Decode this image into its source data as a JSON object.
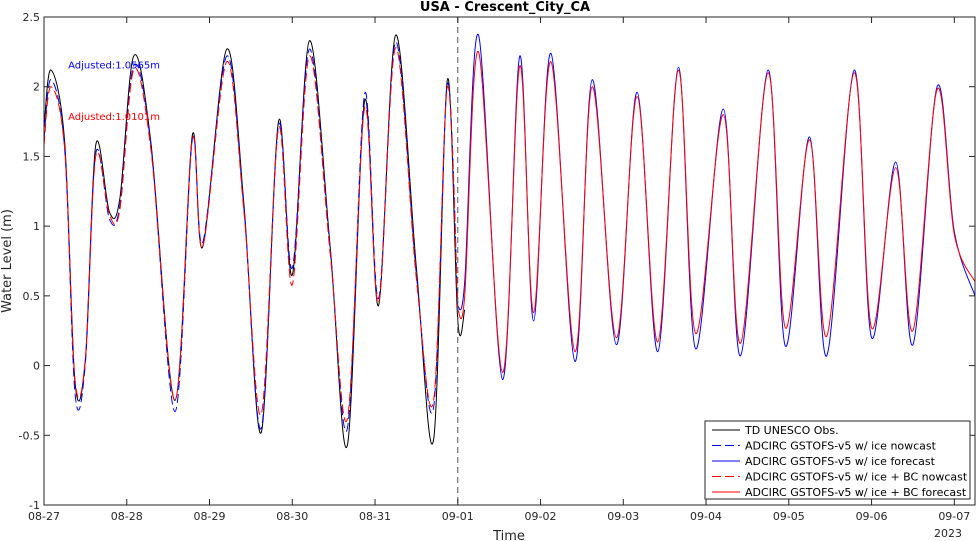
{
  "chart_data": {
    "type": "line",
    "title": "USA - Crescent_City_CA",
    "xlabel": "Time",
    "ylabel": "Water Level (m)",
    "year_label": "2023",
    "ylim": [
      -1,
      2.5
    ],
    "yticks": [
      -1,
      -0.5,
      0,
      0.5,
      1,
      1.5,
      2,
      2.5
    ],
    "ytick_labels": [
      "-1",
      "-0.5",
      "0",
      "0.5",
      "1",
      "1.5",
      "2",
      "2.5"
    ],
    "xlim": [
      "2023-08-27 00:00",
      "2023-09-07 06:00"
    ],
    "xticks": [
      "08-27",
      "08-28",
      "08-29",
      "08-30",
      "08-31",
      "09-01",
      "09-02",
      "09-03",
      "09-04",
      "09-05",
      "09-06",
      "09-07"
    ],
    "nowcast_forecast_split": "2023-09-01 00:00",
    "grid": false,
    "legend_position": "bottom-right",
    "annotations": [
      {
        "text": "Adjusted:1.0565m",
        "color": "#0000ff",
        "at": [
          "2023-08-27 07:00",
          2.13
        ]
      },
      {
        "text": "Adjusted:1.0101m",
        "color": "#ff0000",
        "at": [
          "2023-08-27 07:00",
          1.76
        ]
      }
    ],
    "series": [
      {
        "name": "TD UNESCO Obs.",
        "color": "#000000",
        "dash": "solid",
        "x": [
          "2023-08-27 00:00",
          "2023-08-27 02:00",
          "2023-08-27 06:00",
          "2023-08-27 09:00",
          "2023-08-27 12:00",
          "2023-08-27 15:00",
          "2023-08-27 19:00",
          "2023-08-27 22:00",
          "2023-08-28 02:00",
          "2023-08-28 07:00",
          "2023-08-28 14:00",
          "2023-08-28 19:00",
          "2023-08-28 22:00",
          "2023-08-29 05:00",
          "2023-08-29 10:00",
          "2023-08-29 15:00",
          "2023-08-29 20:00",
          "2023-08-30 00:00",
          "2023-08-30 05:00",
          "2023-08-30 11:00",
          "2023-08-30 16:00",
          "2023-08-30 21:00",
          "2023-08-31 01:00",
          "2023-08-31 06:00",
          "2023-08-31 12:00",
          "2023-08-31 17:00",
          "2023-08-31 21:00",
          "2023-09-01 00:00",
          "2023-09-01 02:00"
        ],
        "y": [
          1.7,
          2.12,
          1.6,
          -0.12,
          0.05,
          1.58,
          1.1,
          1.2,
          2.22,
          1.6,
          -0.25,
          1.65,
          0.85,
          2.27,
          1.15,
          -0.48,
          1.75,
          0.65,
          2.33,
          0.85,
          -0.57,
          1.9,
          0.43,
          2.37,
          0.7,
          -0.53,
          2.05,
          0.32,
          0.4
        ]
      },
      {
        "name": "ADCIRC GSTOFS-v5 w/ ice nowcast",
        "color": "#0000ff",
        "dash": "long",
        "x": [
          "2023-08-27 00:00",
          "2023-08-27 02:00",
          "2023-08-27 06:00",
          "2023-08-27 09:00",
          "2023-08-27 12:00",
          "2023-08-27 15:00",
          "2023-08-27 19:00",
          "2023-08-27 22:00",
          "2023-08-28 02:00",
          "2023-08-28 07:00",
          "2023-08-28 14:00",
          "2023-08-28 19:00",
          "2023-08-28 22:00",
          "2023-08-29 05:00",
          "2023-08-29 10:00",
          "2023-08-29 15:00",
          "2023-08-29 20:00",
          "2023-08-30 00:00",
          "2023-08-30 05:00",
          "2023-08-30 11:00",
          "2023-08-30 16:00",
          "2023-08-30 21:00",
          "2023-08-31 01:00",
          "2023-08-31 06:00",
          "2023-08-31 12:00",
          "2023-08-31 17:00",
          "2023-08-31 21:00",
          "2023-09-01 00:00"
        ],
        "y": [
          1.62,
          2.05,
          1.55,
          -0.2,
          0.02,
          1.52,
          1.05,
          1.15,
          2.15,
          1.58,
          -0.33,
          1.62,
          0.88,
          2.22,
          1.12,
          -0.45,
          1.72,
          0.7,
          2.27,
          0.83,
          -0.45,
          1.95,
          0.48,
          2.32,
          0.65,
          -0.3,
          2.02,
          0.42
        ]
      },
      {
        "name": "ADCIRC GSTOFS-v5 w/ ice forecast",
        "color": "#0000ff",
        "dash": "solid",
        "x": [
          "2023-09-01 00:00",
          "2023-09-01 02:00",
          "2023-09-01 06:00",
          "2023-09-01 13:00",
          "2023-09-01 18:00",
          "2023-09-01 22:00",
          "2023-09-02 03:00",
          "2023-09-02 10:00",
          "2023-09-02 15:00",
          "2023-09-02 22:00",
          "2023-09-03 04:00",
          "2023-09-03 10:00",
          "2023-09-03 16:00",
          "2023-09-03 21:00",
          "2023-09-04 05:00",
          "2023-09-04 10:00",
          "2023-09-04 18:00",
          "2023-09-04 23:00",
          "2023-09-05 06:00",
          "2023-09-05 11:00",
          "2023-09-05 19:00",
          "2023-09-06 00:00",
          "2023-09-06 07:00",
          "2023-09-06 12:00",
          "2023-09-06 19:00",
          "2023-09-07 00:00",
          "2023-09-07 06:00"
        ],
        "y": [
          0.42,
          0.6,
          2.37,
          -0.1,
          2.22,
          0.32,
          2.24,
          0.03,
          2.05,
          0.15,
          1.96,
          0.1,
          2.14,
          0.12,
          1.84,
          0.07,
          2.12,
          0.14,
          1.64,
          0.07,
          2.12,
          0.2,
          1.46,
          0.15,
          2.0,
          0.96,
          0.5
        ]
      },
      {
        "name": "ADCIRC GSTOFS-v5 w/ ice + BC nowcast",
        "color": "#ff0000",
        "dash": "long",
        "x": [
          "2023-08-27 00:00",
          "2023-08-27 02:00",
          "2023-08-27 06:00",
          "2023-08-27 09:00",
          "2023-08-27 12:00",
          "2023-08-27 15:00",
          "2023-08-27 19:00",
          "2023-08-27 22:00",
          "2023-08-28 02:00",
          "2023-08-28 07:00",
          "2023-08-28 14:00",
          "2023-08-28 19:00",
          "2023-08-28 22:00",
          "2023-08-29 05:00",
          "2023-08-29 10:00",
          "2023-08-29 15:00",
          "2023-08-29 20:00",
          "2023-08-30 00:00",
          "2023-08-30 05:00",
          "2023-08-30 11:00",
          "2023-08-30 16:00",
          "2023-08-30 21:00",
          "2023-08-31 01:00",
          "2023-08-31 06:00",
          "2023-08-31 12:00",
          "2023-08-31 17:00",
          "2023-08-31 21:00",
          "2023-09-01 00:00"
        ],
        "y": [
          1.58,
          2.0,
          1.55,
          -0.1,
          0.05,
          1.5,
          1.08,
          1.12,
          2.12,
          1.55,
          -0.25,
          1.62,
          0.85,
          2.18,
          1.1,
          -0.35,
          1.7,
          0.58,
          2.22,
          0.8,
          -0.38,
          1.85,
          0.45,
          2.28,
          0.62,
          -0.25,
          2.0,
          0.4
        ]
      },
      {
        "name": "ADCIRC GSTOFS-v5 w/ ice + BC forecast",
        "color": "#ff0000",
        "dash": "solid",
        "x": [
          "2023-09-01 00:00",
          "2023-09-01 02:00",
          "2023-09-01 06:00",
          "2023-09-01 13:00",
          "2023-09-01 18:00",
          "2023-09-01 22:00",
          "2023-09-02 03:00",
          "2023-09-02 10:00",
          "2023-09-02 15:00",
          "2023-09-02 22:00",
          "2023-09-03 04:00",
          "2023-09-03 10:00",
          "2023-09-03 16:00",
          "2023-09-03 21:00",
          "2023-09-04 05:00",
          "2023-09-04 10:00",
          "2023-09-04 18:00",
          "2023-09-04 23:00",
          "2023-09-05 06:00",
          "2023-09-05 11:00",
          "2023-09-05 19:00",
          "2023-09-06 00:00",
          "2023-09-06 07:00",
          "2023-09-06 12:00",
          "2023-09-06 19:00",
          "2023-09-07 00:00",
          "2023-09-07 06:00"
        ],
        "y": [
          0.4,
          0.5,
          2.25,
          -0.05,
          2.15,
          0.38,
          2.18,
          0.1,
          2.0,
          0.2,
          1.93,
          0.17,
          2.12,
          0.23,
          1.8,
          0.16,
          2.1,
          0.27,
          1.62,
          0.21,
          2.1,
          0.27,
          1.42,
          0.25,
          1.98,
          0.94,
          0.6
        ]
      }
    ]
  }
}
